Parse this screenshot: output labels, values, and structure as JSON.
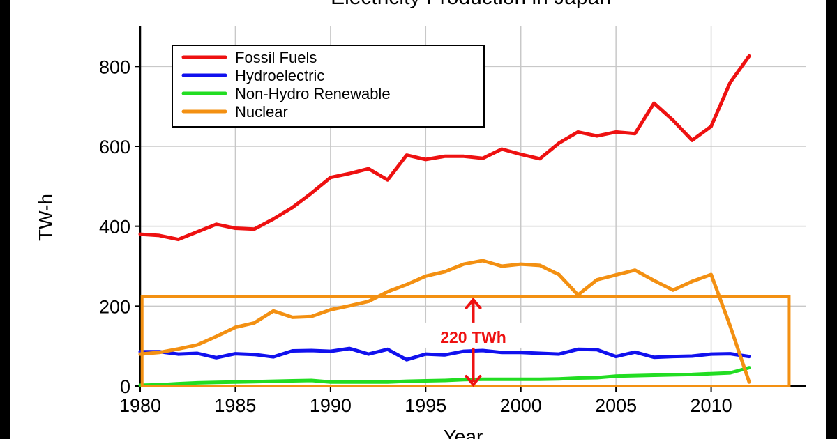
{
  "chart_data": {
    "type": "line",
    "title": "Electricity Production in Japan",
    "xlabel": "Year",
    "ylabel": "TW-h",
    "xlim": [
      1980,
      2015
    ],
    "ylim": [
      0,
      900
    ],
    "xticks": [
      1980,
      1985,
      1990,
      1995,
      2000,
      2005,
      2010
    ],
    "yticks": [
      0,
      200,
      400,
      600,
      800
    ],
    "grid": true,
    "legend_position": "top-left",
    "x": [
      1980,
      1981,
      1982,
      1983,
      1984,
      1985,
      1986,
      1987,
      1988,
      1989,
      1990,
      1991,
      1992,
      1993,
      1994,
      1995,
      1996,
      1997,
      1998,
      1999,
      2000,
      2001,
      2002,
      2003,
      2004,
      2005,
      2006,
      2007,
      2008,
      2009,
      2010,
      2011,
      2012
    ],
    "series": [
      {
        "name": "Fossil Fuels",
        "color": "#ee1111",
        "values": [
          380,
          377,
          367,
          386,
          405,
          395,
          393,
          418,
          447,
          483,
          522,
          532,
          544,
          516,
          578,
          567,
          575,
          575,
          570,
          593,
          580,
          569,
          608,
          636,
          626,
          636,
          632,
          708,
          665,
          615,
          650,
          760,
          826
        ]
      },
      {
        "name": "Hydroelectric",
        "color": "#1111ee",
        "values": [
          86,
          86,
          80,
          82,
          71,
          81,
          79,
          73,
          88,
          89,
          87,
          94,
          80,
          92,
          66,
          80,
          78,
          87,
          89,
          84,
          84,
          82,
          80,
          92,
          91,
          74,
          85,
          72,
          74,
          75,
          80,
          81,
          74
        ]
      },
      {
        "name": "Non-Hydro Renewable",
        "color": "#22dd22",
        "values": [
          2,
          3,
          6,
          8,
          9,
          10,
          11,
          12,
          13,
          14,
          10,
          10,
          10,
          10,
          12,
          13,
          14,
          16,
          17,
          17,
          17,
          17,
          18,
          20,
          21,
          25,
          26,
          27,
          28,
          29,
          31,
          33,
          46
        ]
      },
      {
        "name": "Nuclear",
        "color": "#f39012",
        "values": [
          80,
          84,
          93,
          103,
          124,
          147,
          158,
          188,
          172,
          174,
          191,
          201,
          212,
          236,
          254,
          275,
          286,
          305,
          314,
          300,
          305,
          302,
          279,
          228,
          266,
          278,
          290,
          264,
          240,
          262,
          279,
          150,
          10
        ]
      }
    ],
    "annotation": {
      "label": "220 TWh",
      "value_range": [
        0,
        220
      ],
      "x": 1997.5,
      "box_x_range": [
        1980.1,
        2014.1
      ],
      "box_y_range": [
        0,
        225
      ],
      "arrow_color": "#ee1111",
      "box_color": "#f39012"
    }
  }
}
